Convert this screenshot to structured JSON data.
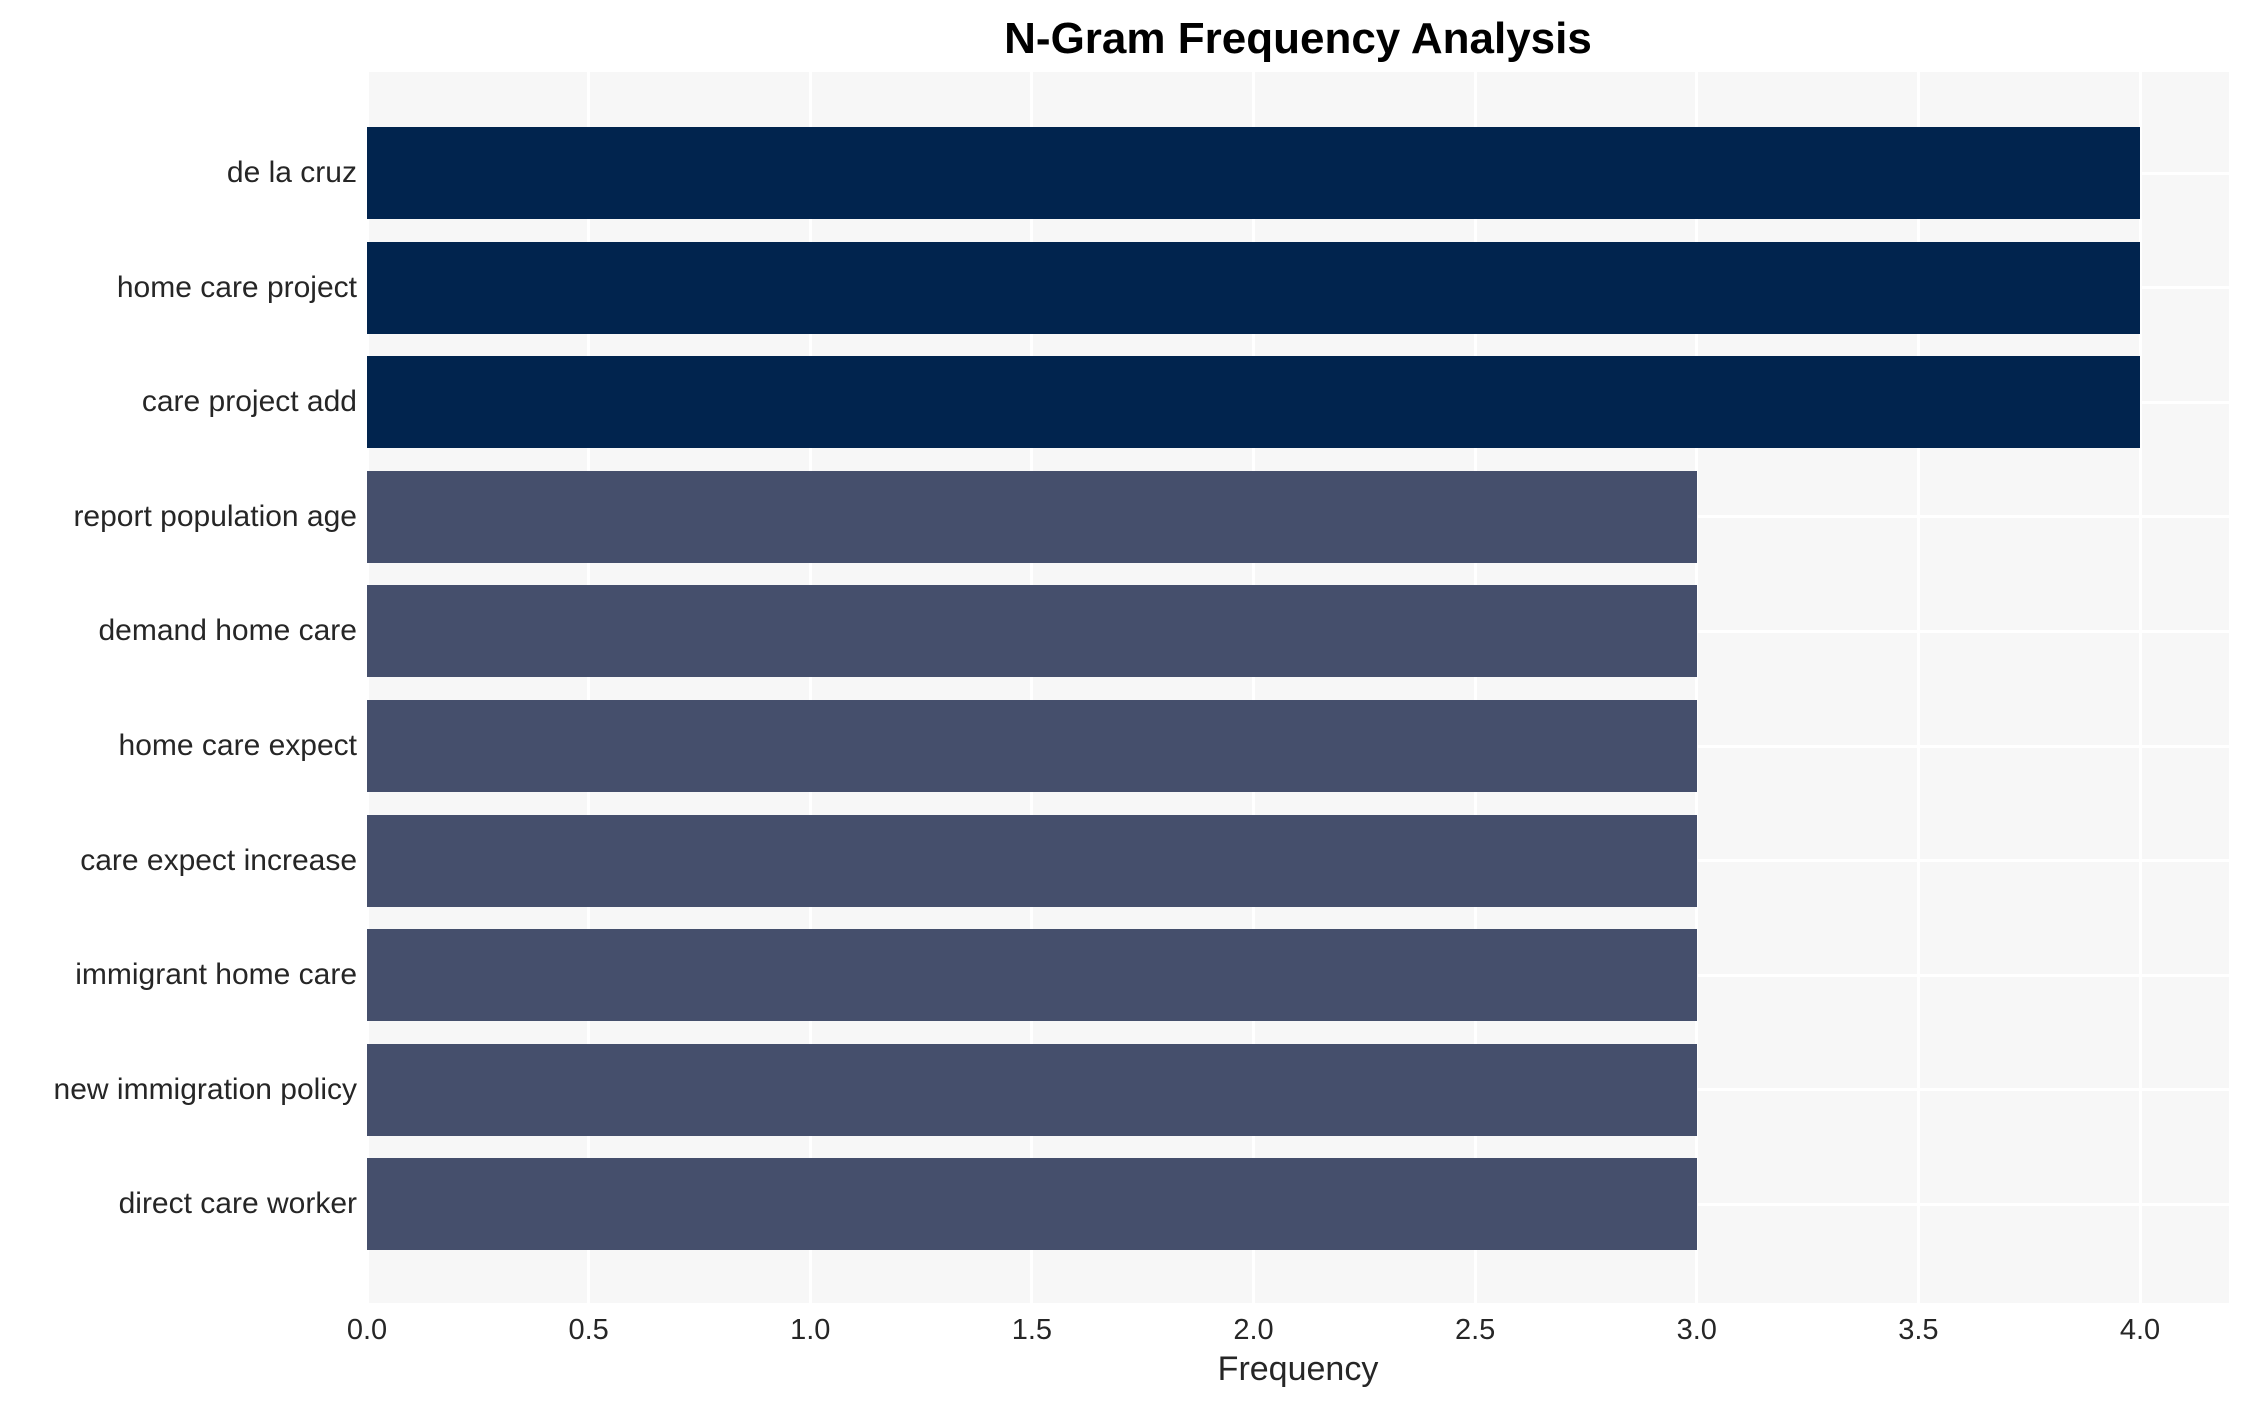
{
  "chart_data": {
    "type": "bar",
    "orientation": "horizontal",
    "title": "N-Gram Frequency Analysis",
    "xlabel": "Frequency",
    "ylabel": "",
    "categories": [
      "de la cruz",
      "home care project",
      "care project add",
      "report population age",
      "demand home care",
      "home care expect",
      "care expect increase",
      "immigrant home care",
      "new immigration policy",
      "direct care worker"
    ],
    "values": [
      4,
      4,
      4,
      3,
      3,
      3,
      3,
      3,
      3,
      3
    ],
    "xlim": [
      0,
      4.2
    ],
    "xticks": [
      0,
      0.5,
      1,
      1.5,
      2,
      2.5,
      3,
      3.5,
      4
    ],
    "xtick_labels": [
      "0.0",
      "0.5",
      "1.0",
      "1.5",
      "2.0",
      "2.5",
      "3.0",
      "3.5",
      "4.0"
    ],
    "grid": true,
    "legend": false,
    "bar_colors": [
      "#01244e",
      "#01244e",
      "#01244e",
      "#454f6c",
      "#454f6c",
      "#454f6c",
      "#454f6c",
      "#454f6c",
      "#454f6c",
      "#454f6c"
    ],
    "colors": {
      "bar_high": "#01244e",
      "bar_low": "#454f6c",
      "plot_background": "#f7f7f7",
      "figure_background": "#ffffff",
      "gridline": "#ffffff",
      "text": "#262626",
      "title_color": "#000000"
    }
  }
}
